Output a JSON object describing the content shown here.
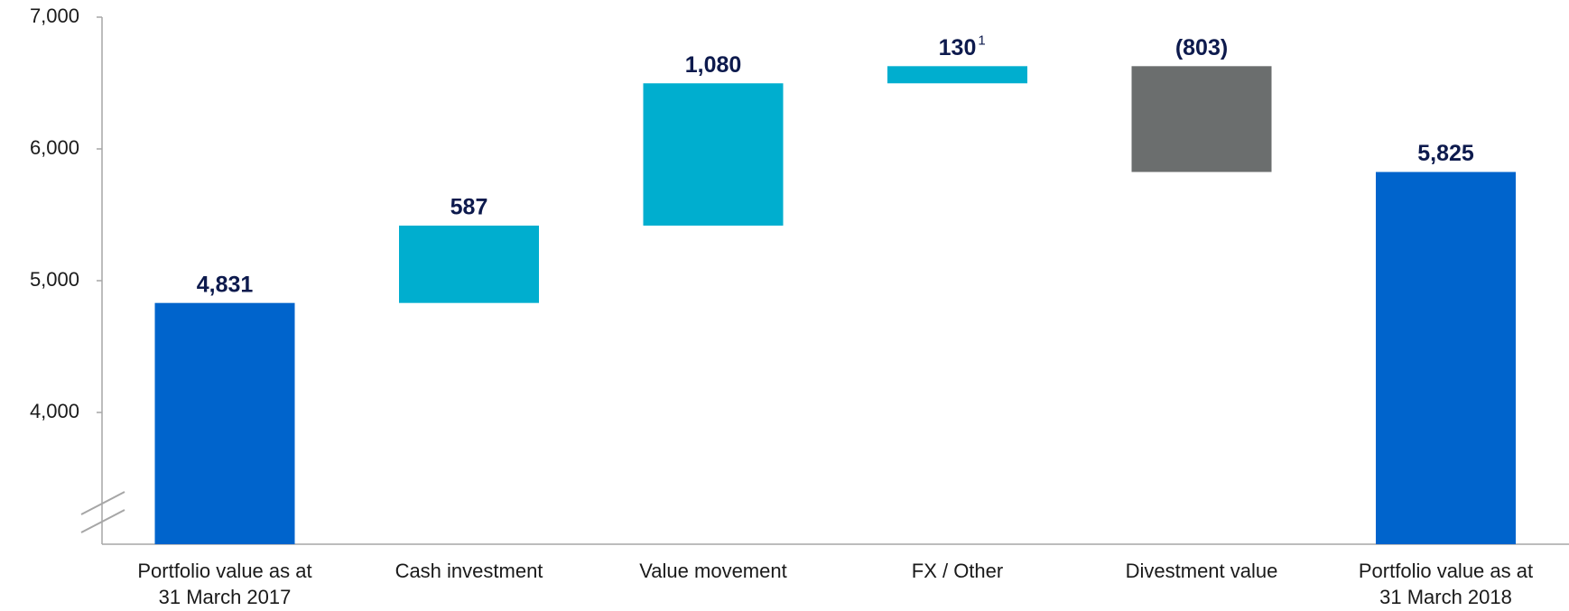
{
  "chart_data": {
    "type": "waterfall",
    "categories": [
      [
        "Portfolio value as at",
        "31 March 2017"
      ],
      [
        "Cash investment"
      ],
      [
        "Value movement"
      ],
      [
        "FX / Other"
      ],
      [
        "Divestment value"
      ],
      [
        "Portfolio value as at",
        "31 March 2018"
      ]
    ],
    "values": [
      4831,
      587,
      1080,
      130,
      -803,
      5825
    ],
    "value_labels": [
      "4,831",
      "587",
      "1,080",
      "130",
      "(803)",
      "5,825"
    ],
    "measures": [
      "total",
      "relative",
      "relative",
      "relative",
      "relative",
      "total"
    ],
    "footnotes": [
      null,
      null,
      null,
      "1",
      null,
      null
    ],
    "colors": {
      "total": "#0064cc",
      "increase": "#00aecf",
      "decrease": "#6b6e6e"
    },
    "ylim": [
      3000,
      7000
    ],
    "yticks": [
      {
        "value": 4000,
        "label": "4,000"
      },
      {
        "value": 5000,
        "label": "5,000"
      },
      {
        "value": 6000,
        "label": "6,000"
      },
      {
        "value": 7000,
        "label": "7,000"
      }
    ],
    "axis_break": true
  }
}
